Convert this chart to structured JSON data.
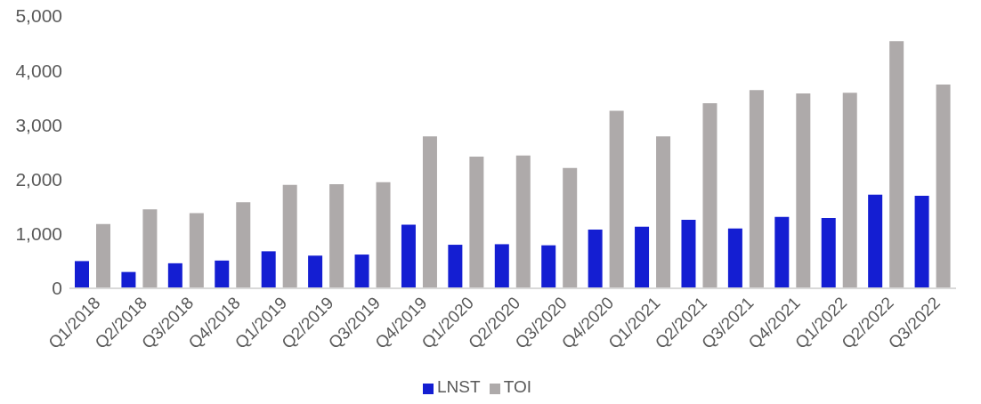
{
  "chart_data": {
    "type": "bar",
    "categories": [
      "Q1/2018",
      "Q2/2018",
      "Q3/2018",
      "Q4/2018",
      "Q1/2019",
      "Q2/2019",
      "Q3/2019",
      "Q4/2019",
      "Q1/2020",
      "Q2/2020",
      "Q3/2020",
      "Q4/2020",
      "Q1/2021",
      "Q2/2021",
      "Q3/2021",
      "Q4/2021",
      "Q1/2022",
      "Q2/2022",
      "Q3/2022"
    ],
    "series": [
      {
        "name": "LNST",
        "color": "#141ed2",
        "values": [
          500,
          300,
          460,
          510,
          680,
          600,
          620,
          1170,
          800,
          810,
          790,
          1080,
          1130,
          1260,
          1100,
          1310,
          1290,
          1720,
          1700
        ]
      },
      {
        "name": "TOI",
        "color": "#aeaaaa",
        "values": [
          1180,
          1450,
          1380,
          1580,
          1900,
          1910,
          1950,
          2790,
          2420,
          2440,
          2210,
          3260,
          2790,
          3400,
          3640,
          3580,
          3590,
          4540,
          3740
        ]
      }
    ],
    "ylim": [
      0,
      5000
    ],
    "yticks": [
      {
        "value": 0,
        "label": "0"
      },
      {
        "value": 1000,
        "label": "1,000"
      },
      {
        "value": 2000,
        "label": "2,000"
      },
      {
        "value": 3000,
        "label": "3,000"
      },
      {
        "value": 4000,
        "label": "4,000"
      },
      {
        "value": 5000,
        "label": "5,000"
      }
    ],
    "grid": false,
    "legend": "bottom"
  }
}
